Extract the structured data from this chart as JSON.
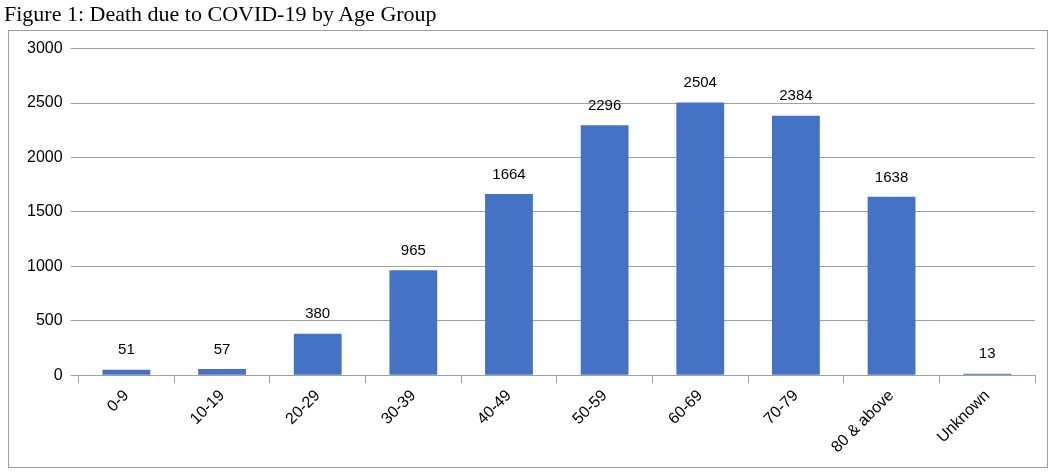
{
  "chart_data": {
    "type": "bar",
    "title": "Figure 1: Death due to COVID-19 by Age Group",
    "categories": [
      "0-9",
      "10-19",
      "20-29",
      "30-39",
      "40-49",
      "50-59",
      "60-69",
      "70-79",
      "80 & above",
      "Unknown"
    ],
    "values": [
      51,
      57,
      380,
      965,
      1664,
      2296,
      2504,
      2384,
      1638,
      13
    ],
    "color": "#4472c4",
    "ylim": [
      0,
      3000
    ],
    "yticks": [
      0,
      500,
      1000,
      1500,
      2000,
      2500,
      3000
    ],
    "grid": "y",
    "data_labels": true,
    "legend": false
  }
}
